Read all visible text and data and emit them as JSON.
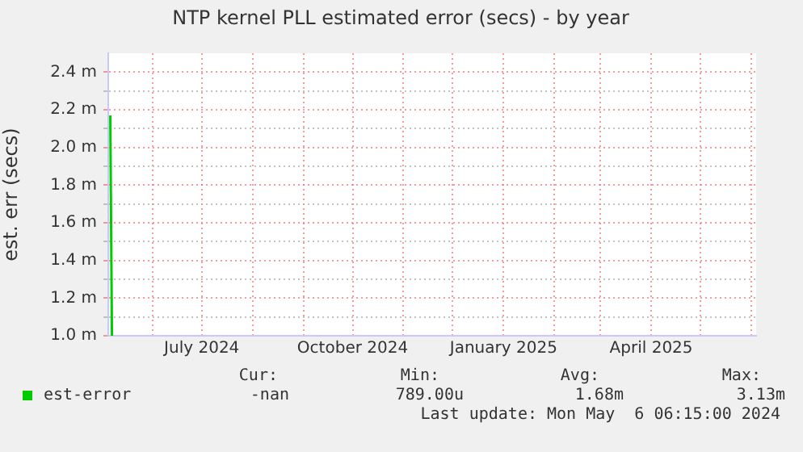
{
  "chart_data": {
    "type": "line",
    "title": "NTP kernel PLL estimated error (secs) - by year",
    "ylabel": "est. err (secs)",
    "x": [
      "2024-05-06T06:00",
      "2024-05-07T06:00"
    ],
    "series": [
      {
        "name": "est-error",
        "color": "#00cc00",
        "values": [
          2.17,
          1.0
        ]
      }
    ],
    "xlim": [
      "2024-05-05",
      "2025-06-04"
    ],
    "xticks": [
      {
        "value": "2024-06-01",
        "label": null
      },
      {
        "value": "2024-07-01",
        "label": "July 2024"
      },
      {
        "value": "2024-08-01",
        "label": null
      },
      {
        "value": "2024-09-01",
        "label": null
      },
      {
        "value": "2024-10-01",
        "label": "October 2024"
      },
      {
        "value": "2024-11-01",
        "label": null
      },
      {
        "value": "2024-12-01",
        "label": null
      },
      {
        "value": "2025-01-01",
        "label": "January 2025"
      },
      {
        "value": "2025-02-01",
        "label": null
      },
      {
        "value": "2025-03-01",
        "label": null
      },
      {
        "value": "2025-04-01",
        "label": "April 2025"
      },
      {
        "value": "2025-05-01",
        "label": null
      },
      {
        "value": "2025-06-01",
        "label": null
      }
    ],
    "ylim": [
      1.0,
      2.5
    ],
    "yticks": [
      {
        "value": 1.0,
        "label": "1.0 m"
      },
      {
        "value": 1.1,
        "label": null
      },
      {
        "value": 1.2,
        "label": "1.2 m"
      },
      {
        "value": 1.3,
        "label": null
      },
      {
        "value": 1.4,
        "label": "1.4 m"
      },
      {
        "value": 1.5,
        "label": null
      },
      {
        "value": 1.6,
        "label": "1.6 m"
      },
      {
        "value": 1.7,
        "label": null
      },
      {
        "value": 1.8,
        "label": "1.8 m"
      },
      {
        "value": 1.9,
        "label": null
      },
      {
        "value": 2.0,
        "label": "2.0 m"
      },
      {
        "value": 2.1,
        "label": null
      },
      {
        "value": 2.2,
        "label": "2.2 m"
      },
      {
        "value": 2.3,
        "label": null
      },
      {
        "value": 2.4,
        "label": "2.4 m"
      }
    ],
    "grid": true,
    "legend": "bottom",
    "marker": "none",
    "line_style": "solid",
    "annotations": [
      "Cur:",
      "Min:",
      "Avg:",
      "Max:",
      "-nan",
      "789.00u",
      "1.68m",
      "3.13m",
      "Last update: Mon May  6 06:15:00 2024"
    ]
  }
}
